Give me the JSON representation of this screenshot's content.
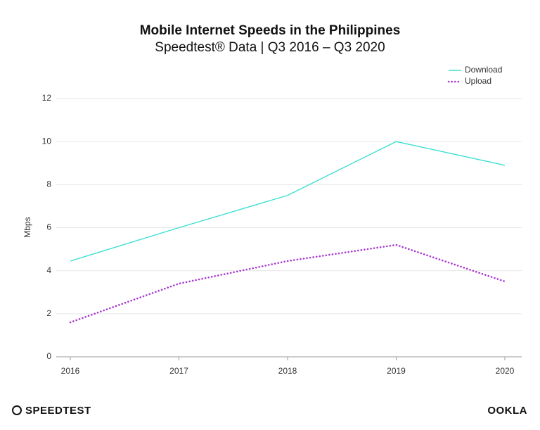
{
  "chart_data": {
    "type": "line",
    "title": "Mobile Internet Speeds in the Philippines",
    "subtitle": "Speedtest® Data | Q3 2016 – Q3 2020",
    "y_label": "Mbps",
    "categories": [
      "2016",
      "2017",
      "2018",
      "2019",
      "2020"
    ],
    "series": [
      {
        "name": "Download",
        "color": "#3ddfd3",
        "style": "solid",
        "values": [
          4.45,
          6.0,
          7.5,
          10.0,
          8.9
        ]
      },
      {
        "name": "Upload",
        "color": "#a838d4",
        "style": "dotted",
        "values": [
          1.6,
          3.4,
          4.45,
          5.2,
          3.5
        ]
      }
    ],
    "ylim": [
      0,
      12
    ],
    "yticks": [
      0,
      2,
      4,
      6,
      8,
      10,
      12
    ],
    "grid": true,
    "legend": "top-right"
  },
  "branding": {
    "left": "SPEEDTEST",
    "right": "OOKLA"
  }
}
